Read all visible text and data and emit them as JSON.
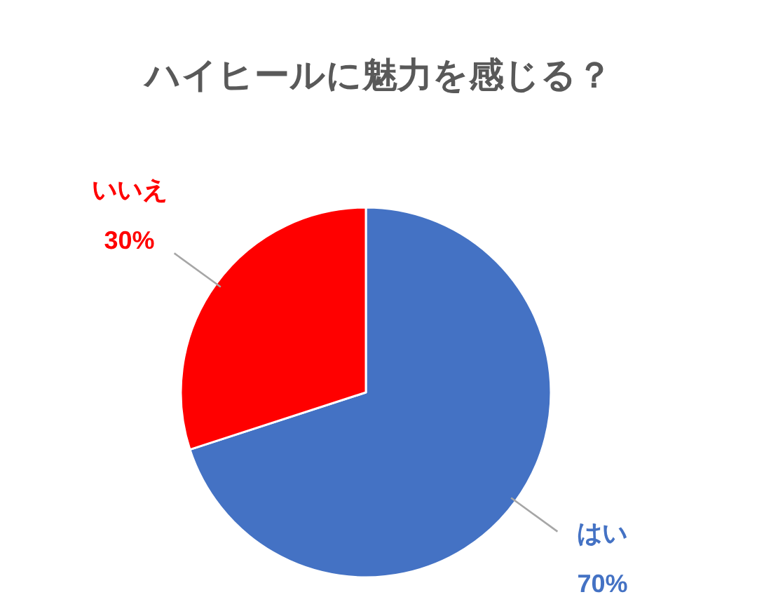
{
  "chart_data": {
    "type": "pie",
    "title": "ハイヒールに魅力を感じる？",
    "categories": [
      "はい",
      "いいえ"
    ],
    "values": [
      70,
      30
    ],
    "colors": [
      "#4472c4",
      "#ff0000"
    ],
    "value_labels": [
      "70%",
      "30%"
    ]
  }
}
